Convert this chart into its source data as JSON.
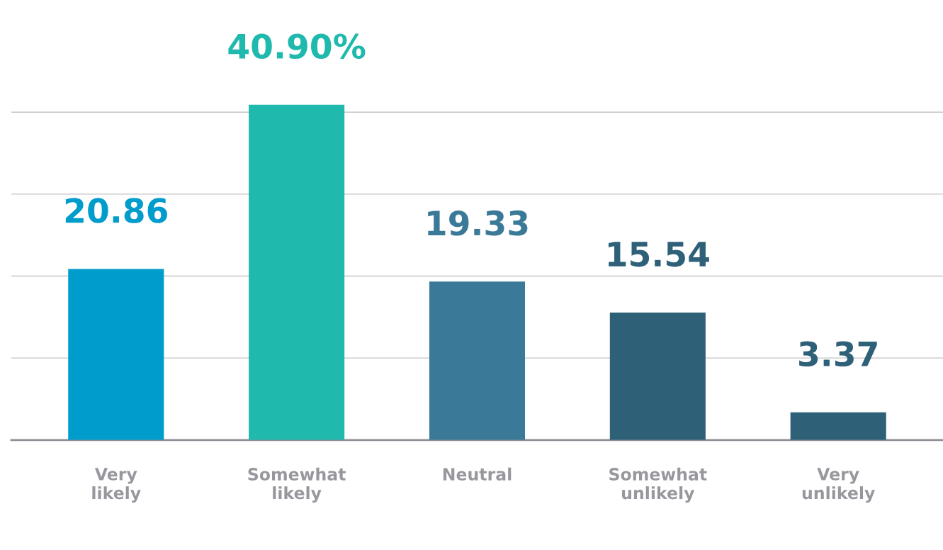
{
  "chart_data": {
    "type": "bar",
    "categories": [
      "Very\nlikely",
      "Somewhat\nlikely",
      "Neutral",
      "Somewhat\nunlikely",
      "Very\nunlikely"
    ],
    "values": [
      20.86,
      40.9,
      19.33,
      15.54,
      3.37
    ],
    "value_labels": [
      "20.86",
      "40.90%",
      "19.33",
      "15.54",
      "3.37"
    ],
    "colors": [
      "#009ccc",
      "#1fb9ad",
      "#3a7a98",
      "#2e6078",
      "#2e6078"
    ],
    "yticks": [
      {
        "value": 10,
        "label": null
      },
      {
        "value": 20,
        "label": null
      },
      {
        "value": 30,
        "label": null
      },
      {
        "value": 40,
        "label": null
      }
    ],
    "grid": "y",
    "tick_labels": "x"
  }
}
